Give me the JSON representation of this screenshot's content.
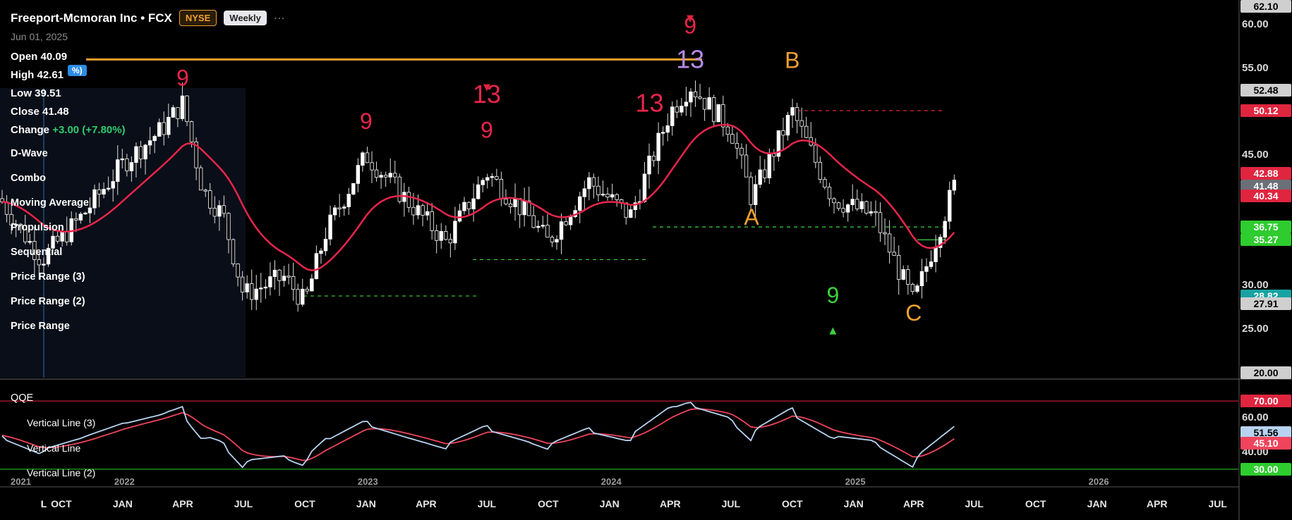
{
  "header": {
    "title": "Freeport-Mcmoran Inc • FCX",
    "exchange": "NYSE",
    "timeframe": "Weekly",
    "more": "⋯",
    "date": "Jun 01, 2025"
  },
  "ohlc": {
    "open_label": "Open",
    "open": "40.09",
    "high_label": "High",
    "high": "42.61",
    "low_label": "Low",
    "low": "39.51",
    "close_label": "Close",
    "close": "41.48",
    "change_label": "Change",
    "change": "+3.00 (+7.80%)",
    "pill": "%)"
  },
  "indicators": [
    "D-Wave",
    "Combo",
    "Moving Average",
    "Propulsion",
    "Sequential",
    "Price Range (3)",
    "Price Range (2)",
    "Price Range"
  ],
  "lower_pane": {
    "title": "QQE",
    "lines": [
      "Vertical Line (3)",
      "Vertical Line",
      "Vertical Line (2)"
    ]
  },
  "colors": {
    "up": "#ffffff",
    "down": "#ffffff",
    "ma": "#e8254b",
    "qqe_fast": "#b7d3f0",
    "qqe_slow": "#f0445c",
    "orange": "#f0a030",
    "green": "#3bd13b",
    "purple": "#b58ae6",
    "red_level": "#e0253f"
  },
  "price_axis": {
    "ticks": [
      "60.00",
      "55.00",
      "45.00",
      "30.00",
      "25.00"
    ],
    "boxes": [
      {
        "label": "62.10",
        "bg": "#cfcfcf",
        "fg": "#000"
      },
      {
        "label": "52.48",
        "bg": "#cfcfcf",
        "fg": "#000"
      },
      {
        "label": "50.12",
        "bg": "#e0253f",
        "fg": "#fff"
      },
      {
        "label": "42.88",
        "bg": "#e0253f",
        "fg": "#fff"
      },
      {
        "label": "41.48",
        "bg": "#6b6f78",
        "fg": "#fff"
      },
      {
        "label": "40.34",
        "bg": "#e0253f",
        "fg": "#fff"
      },
      {
        "label": "36.75",
        "bg": "#2ecc2e",
        "fg": "#fff"
      },
      {
        "label": "35.27",
        "bg": "#2ecc2e",
        "fg": "#fff"
      },
      {
        "label": "28.82",
        "bg": "#19a2a2",
        "fg": "#fff"
      },
      {
        "label": "27.91",
        "bg": "#cfcfcf",
        "fg": "#000"
      },
      {
        "label": "20.00",
        "bg": "#cfcfcf",
        "fg": "#000"
      }
    ]
  },
  "qqe_axis": {
    "ticks": [
      "60.00",
      "40.00"
    ],
    "boxes": [
      {
        "label": "70.00",
        "bg": "#e0253f",
        "fg": "#fff"
      },
      {
        "label": "51.56",
        "bg": "#b7d3f0",
        "fg": "#000"
      },
      {
        "label": "45.10",
        "bg": "#f0445c",
        "fg": "#fff"
      },
      {
        "label": "30.00",
        "bg": "#2ecc2e",
        "fg": "#fff"
      }
    ]
  },
  "x_axis": {
    "years": [
      "2021",
      "2022",
      "2023",
      "2024",
      "2025",
      "2026"
    ],
    "months": [
      "OCT",
      "JAN",
      "APR",
      "JUL",
      "OCT",
      "JAN",
      "APR",
      "JUL",
      "OCT",
      "JAN",
      "APR",
      "JUL",
      "OCT",
      "JAN",
      "APR",
      "JUL",
      "OCT",
      "JAN",
      "APR",
      "JUL"
    ],
    "corner": "L"
  },
  "chart_data": {
    "type": "candlestick",
    "title": "Freeport-Mcmoran Inc • FCX",
    "timeframe": "Weekly",
    "x_range": [
      "2021-07",
      "2026-08"
    ],
    "y_range": [
      20,
      62.1
    ],
    "close_path": [
      {
        "date": "2021-07",
        "close": 40
      },
      {
        "date": "2021-09",
        "close": 33
      },
      {
        "date": "2021-11",
        "close": 38
      },
      {
        "date": "2022-01",
        "close": 44
      },
      {
        "date": "2022-03",
        "close": 48
      },
      {
        "date": "2022-04",
        "close": 51
      },
      {
        "date": "2022-05",
        "close": 41
      },
      {
        "date": "2022-06",
        "close": 38
      },
      {
        "date": "2022-07",
        "close": 29
      },
      {
        "date": "2022-09",
        "close": 31
      },
      {
        "date": "2022-10",
        "close": 28
      },
      {
        "date": "2022-11",
        "close": 36
      },
      {
        "date": "2023-01",
        "close": 45
      },
      {
        "date": "2023-03",
        "close": 40
      },
      {
        "date": "2023-05",
        "close": 35
      },
      {
        "date": "2023-07",
        "close": 43
      },
      {
        "date": "2023-09",
        "close": 38
      },
      {
        "date": "2023-10",
        "close": 35
      },
      {
        "date": "2023-12",
        "close": 42
      },
      {
        "date": "2024-02",
        "close": 38
      },
      {
        "date": "2024-04",
        "close": 50
      },
      {
        "date": "2024-05",
        "close": 53
      },
      {
        "date": "2024-07",
        "close": 48
      },
      {
        "date": "2024-08",
        "close": 40
      },
      {
        "date": "2024-10",
        "close": 50
      },
      {
        "date": "2024-12",
        "close": 40
      },
      {
        "date": "2025-02",
        "close": 38
      },
      {
        "date": "2025-04",
        "close": 28
      },
      {
        "date": "2025-06",
        "close": 41.48
      }
    ],
    "annotations": [
      {
        "text": "9",
        "date": "2022-04",
        "price": 53,
        "color": "#e8254b"
      },
      {
        "text": "9",
        "date": "2023-01",
        "price": 48,
        "color": "#e8254b"
      },
      {
        "text": "13",
        "date": "2023-07",
        "price": 51,
        "color": "#e8254b"
      },
      {
        "text": "9",
        "date": "2023-07",
        "price": 47,
        "color": "#e8254b"
      },
      {
        "text": "13",
        "date": "2024-03",
        "price": 50,
        "color": "#e8254b"
      },
      {
        "text": "13",
        "date": "2024-05",
        "price": 55,
        "color": "#b58ae6"
      },
      {
        "text": "9",
        "date": "2024-05",
        "price": 59,
        "color": "#e8254b"
      },
      {
        "text": "B",
        "date": "2024-10",
        "price": 55,
        "color": "#f0a030"
      },
      {
        "text": "A",
        "date": "2024-08",
        "price": 37,
        "color": "#f0a030"
      },
      {
        "text": "9",
        "date": "2024-12",
        "price": 28,
        "color": "#3bd13b"
      },
      {
        "text": "C",
        "date": "2025-04",
        "price": 26,
        "color": "#f0a030"
      }
    ]
  }
}
